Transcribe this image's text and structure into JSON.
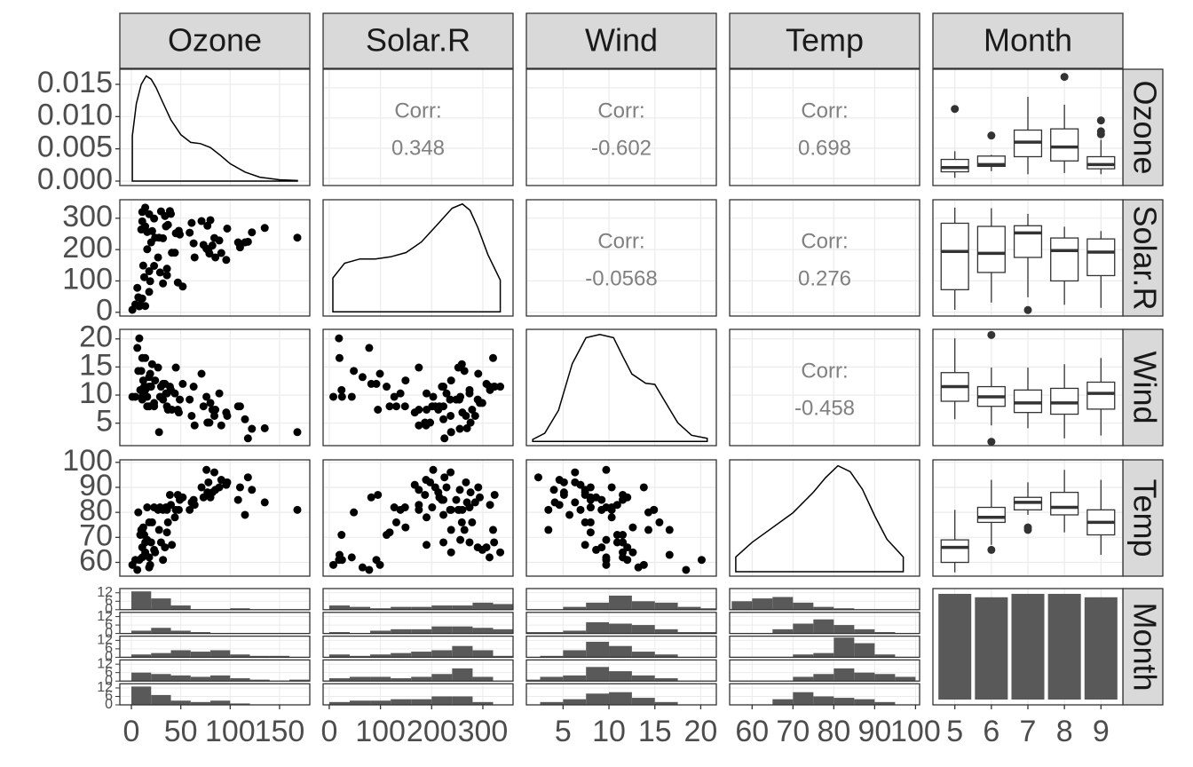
{
  "chart_data": {
    "type": "pairs",
    "variables": [
      "Ozone",
      "Solar.R",
      "Wind",
      "Temp",
      "Month"
    ],
    "axes": [
      {
        "lim": [
          -11.7,
          180.6
        ],
        "ticks": [
          0,
          50,
          100,
          150
        ]
      },
      {
        "lim": [
          -12,
          359
        ],
        "ticks": [
          0,
          100,
          200,
          300
        ]
      },
      {
        "lim": [
          1,
          21.7
        ],
        "ticks": [
          5,
          10,
          15,
          20
        ]
      },
      {
        "lim": [
          54.5,
          101
        ],
        "ticks": [
          60,
          70,
          80,
          90,
          100
        ]
      }
    ],
    "month_categories": [
      5,
      6,
      7,
      8,
      9
    ],
    "density_yticks": [
      {
        "value": 0,
        "label": "0.000"
      },
      {
        "value": 0.005,
        "label": "0.005"
      },
      {
        "value": 0.01,
        "label": "0.010"
      },
      {
        "value": 0.015,
        "label": "0.015"
      }
    ],
    "densities": [
      {
        "ylim": [
          -0.00069,
          0.01734
        ],
        "x": [
          1,
          5,
          10,
          15,
          20,
          25,
          30,
          40,
          50,
          60,
          70,
          80,
          90,
          100,
          115,
          130,
          150,
          168
        ],
        "y": [
          0.007,
          0.012,
          0.015,
          0.0163,
          0.0158,
          0.0145,
          0.0128,
          0.0095,
          0.0072,
          0.006,
          0.0058,
          0.0052,
          0.004,
          0.0027,
          0.0014,
          0.0006,
          0.0002,
          0.0001
        ]
      },
      {
        "ylim": [
          -0.0002,
          0.0053
        ],
        "x": [
          7,
          30,
          60,
          90,
          120,
          150,
          180,
          210,
          240,
          260,
          275,
          290,
          310,
          334
        ],
        "y": [
          0.0016,
          0.0023,
          0.0025,
          0.0025,
          0.0026,
          0.0028,
          0.0033,
          0.0041,
          0.0049,
          0.0051,
          0.0048,
          0.004,
          0.0027,
          0.0015
        ]
      },
      {
        "ylim": [
          -0.004,
          0.108
        ],
        "x": [
          1.7,
          3,
          4.5,
          6,
          7.5,
          9,
          10.5,
          11.5,
          12.5,
          14,
          15,
          16,
          17.5,
          19,
          20.7
        ],
        "y": [
          0.002,
          0.008,
          0.03,
          0.075,
          0.1,
          0.103,
          0.1,
          0.082,
          0.065,
          0.056,
          0.055,
          0.04,
          0.018,
          0.006,
          0.003
        ]
      },
      {
        "ylim": [
          -0.0015,
          0.038
        ],
        "x": [
          56,
          60,
          65,
          70,
          75,
          78,
          81,
          84,
          87,
          90,
          93,
          97
        ],
        "y": [
          0.005,
          0.01,
          0.015,
          0.02,
          0.027,
          0.032,
          0.036,
          0.034,
          0.028,
          0.019,
          0.011,
          0.005
        ]
      }
    ],
    "correlations": [
      {
        "label": "Corr:",
        "value": 0.348
      },
      {
        "label": "Corr:",
        "value": -0.602
      },
      {
        "label": "Corr:",
        "value": 0.698
      },
      {
        "label": "Corr:",
        "value": -0.0568
      },
      {
        "label": "Corr:",
        "value": 0.276
      },
      {
        "label": "Corr:",
        "value": -0.458
      }
    ],
    "observations": [
      [
        41,
        36,
        12,
        18,
        23,
        19,
        8,
        16,
        11,
        14,
        18,
        14,
        34,
        6,
        30,
        11,
        1,
        11,
        4,
        32,
        45,
        115,
        37,
        29,
        71,
        39,
        23,
        135,
        49,
        32,
        64,
        40,
        77,
        97,
        85,
        10,
        27,
        7,
        48,
        35,
        61,
        79,
        63,
        80,
        108,
        52,
        82,
        59,
        122,
        89,
        110,
        168,
        73,
        76,
        118,
        84,
        96,
        78,
        91,
        47,
        21,
        24,
        44,
        28,
        9,
        13,
        16,
        36,
        14,
        18,
        20
      ],
      [
        190,
        118,
        149,
        313,
        299,
        99,
        19,
        256,
        290,
        274,
        65,
        334,
        307,
        78,
        322,
        44,
        8,
        320,
        25,
        92,
        252,
        223,
        279,
        127,
        291,
        323,
        148,
        269,
        248,
        236,
        175,
        314,
        276,
        267,
        175,
        264,
        175,
        48,
        260,
        274,
        285,
        187,
        220,
        294,
        223,
        82,
        213,
        254,
        255,
        229,
        207,
        238,
        215,
        203,
        225,
        237,
        167,
        197,
        189,
        95,
        259,
        238,
        190,
        238,
        24,
        112,
        201,
        139,
        20,
        131,
        223
      ],
      [
        7.4,
        8.0,
        12.6,
        11.5,
        8.6,
        13.8,
        20.1,
        9.7,
        9.2,
        10.9,
        13.2,
        11.5,
        12.0,
        18.4,
        11.5,
        9.7,
        9.7,
        16.6,
        9.7,
        12.0,
        14.9,
        5.7,
        7.4,
        9.7,
        13.8,
        11.5,
        8.0,
        4.1,
        9.2,
        9.2,
        4.6,
        10.9,
        5.1,
        6.3,
        7.4,
        14.3,
        14.9,
        14.3,
        6.9,
        10.3,
        6.3,
        5.1,
        11.5,
        8.6,
        8.0,
        12.0,
        7.4,
        9.2,
        4.0,
        10.3,
        8.0,
        3.4,
        8.0,
        9.7,
        2.3,
        6.3,
        6.9,
        5.1,
        4.6,
        7.4,
        15.5,
        12.6,
        10.3,
        3.4,
        10.9,
        11.5,
        8.0,
        10.3,
        16.6,
        8.0,
        11.5
      ],
      [
        67,
        72,
        74,
        62,
        65,
        59,
        61,
        69,
        66,
        68,
        58,
        64,
        66,
        57,
        68,
        62,
        59,
        73,
        61,
        61,
        81,
        79,
        76,
        82,
        90,
        87,
        82,
        84,
        85,
        81,
        83,
        83,
        88,
        92,
        89,
        73,
        81,
        80,
        81,
        82,
        84,
        87,
        85,
        86,
        85,
        86,
        88,
        81,
        89,
        90,
        90,
        81,
        86,
        97,
        94,
        96,
        91,
        92,
        93,
        87,
        76,
        64,
        78,
        73,
        71,
        71,
        82,
        81,
        63,
        76,
        68
      ]
    ],
    "boxplots": [
      [
        {
          "min": 1,
          "q1": 11,
          "median": 18,
          "q3": 31.5,
          "max": 45,
          "outliers": [
            115
          ]
        },
        {
          "min": 12,
          "q1": 20,
          "median": 23,
          "q3": 37,
          "max": 39,
          "outliers": [
            71
          ]
        },
        {
          "min": 7,
          "q1": 36,
          "median": 60,
          "q3": 80,
          "max": 135,
          "outliers": []
        },
        {
          "min": 9,
          "q1": 29,
          "median": 52,
          "q3": 82,
          "max": 122,
          "outliers": [
            168
          ]
        },
        {
          "min": 7,
          "q1": 16,
          "median": 23,
          "q3": 36,
          "max": 64,
          "outliers": [
            96,
            78,
            73
          ]
        }
      ],
      [
        {
          "min": 8,
          "q1": 72,
          "median": 194,
          "q3": 284,
          "max": 334,
          "outliers": []
        },
        {
          "min": 31,
          "q1": 127,
          "median": 188,
          "q3": 274,
          "max": 332,
          "outliers": []
        },
        {
          "min": 48,
          "q1": 175,
          "median": 253,
          "q3": 276,
          "max": 314,
          "outliers": [
            7
          ]
        },
        {
          "min": 24,
          "q1": 100,
          "median": 197,
          "q3": 237,
          "max": 273,
          "outliers": []
        },
        {
          "min": 14,
          "q1": 117,
          "median": 192,
          "q3": 234,
          "max": 259,
          "outliers": []
        }
      ],
      [
        {
          "min": 5.7,
          "q1": 8.9,
          "median": 11.5,
          "q3": 14,
          "max": 20.1,
          "outliers": []
        },
        {
          "min": 4.6,
          "q1": 8,
          "median": 9.7,
          "q3": 11.5,
          "max": 14.9,
          "outliers": [
            20.7,
            1.7
          ]
        },
        {
          "min": 4.1,
          "q1": 6.9,
          "median": 8.6,
          "q3": 10.9,
          "max": 14.9,
          "outliers": []
        },
        {
          "min": 2.3,
          "q1": 6.6,
          "median": 8.6,
          "q3": 11.2,
          "max": 15.5,
          "outliers": []
        },
        {
          "min": 2.8,
          "q1": 7.5,
          "median": 10.3,
          "q3": 12.3,
          "max": 16.6,
          "outliers": []
        }
      ],
      [
        {
          "min": 56,
          "q1": 60,
          "median": 66,
          "q3": 69,
          "max": 81,
          "outliers": []
        },
        {
          "min": 67,
          "q1": 76,
          "median": 78,
          "q3": 82,
          "max": 93,
          "outliers": [
            65
          ]
        },
        {
          "min": 79,
          "q1": 81,
          "median": 84,
          "q3": 86,
          "max": 92,
          "outliers": [
            73,
            74
          ]
        },
        {
          "min": 72,
          "q1": 79,
          "median": 82,
          "q3": 88,
          "max": 97,
          "outliers": []
        },
        {
          "min": 63,
          "q1": 71,
          "median": 76,
          "q3": 81,
          "max": 93,
          "outliers": []
        }
      ]
    ],
    "month_counts": {
      "values": [
        31,
        30,
        31,
        31,
        30
      ],
      "ylim": [
        -1.55,
        32.55
      ]
    },
    "hist_ylim": [
      0,
      15
    ],
    "hist_yticks": [
      0,
      6,
      12
    ],
    "histograms": [
      {
        "bins": [
          0,
          20,
          40,
          60,
          80,
          100,
          120,
          140,
          160,
          180
        ],
        "counts": [
          [
            13,
            8,
            3,
            0,
            0,
            1,
            0,
            0,
            0
          ],
          [
            2,
            4,
            2,
            1,
            0,
            0,
            0,
            0,
            0
          ],
          [
            2,
            3,
            5,
            4,
            5,
            2,
            1,
            1,
            0
          ],
          [
            6,
            5,
            4,
            3,
            4,
            2,
            1,
            0,
            1
          ],
          [
            13,
            7,
            3,
            2,
            3,
            1,
            0,
            0,
            0
          ]
        ]
      },
      {
        "bins": [
          0,
          40,
          80,
          120,
          160,
          200,
          240,
          280,
          320,
          360
        ],
        "counts": [
          [
            3,
            2,
            1,
            2,
            2,
            3,
            3,
            5,
            4
          ],
          [
            1,
            0,
            2,
            3,
            3,
            5,
            5,
            4,
            3
          ],
          [
            2,
            1,
            2,
            3,
            4,
            5,
            8,
            5,
            1
          ],
          [
            2,
            3,
            3,
            2,
            3,
            5,
            9,
            3,
            0
          ],
          [
            2,
            3,
            3,
            4,
            4,
            6,
            6,
            2,
            0
          ]
        ]
      },
      {
        "bins": [
          0,
          2.5,
          5,
          7.5,
          10,
          12.5,
          15,
          17.5,
          20,
          22.5
        ],
        "counts": [
          [
            0,
            0,
            2,
            5,
            10,
            6,
            5,
            2,
            1
          ],
          [
            1,
            1,
            2,
            8,
            7,
            6,
            3,
            1,
            1
          ],
          [
            0,
            1,
            5,
            11,
            8,
            4,
            2,
            0,
            0
          ],
          [
            1,
            3,
            4,
            10,
            7,
            4,
            2,
            0,
            0
          ],
          [
            0,
            2,
            4,
            8,
            9,
            5,
            2,
            0,
            0
          ]
        ]
      },
      {
        "bins": [
          55,
          60,
          65,
          70,
          75,
          80,
          85,
          90,
          95,
          100
        ],
        "counts": [
          [
            6,
            8,
            9,
            5,
            2,
            1,
            0,
            0,
            0
          ],
          [
            0,
            0,
            3,
            7,
            10,
            6,
            3,
            1,
            0
          ],
          [
            0,
            0,
            0,
            2,
            3,
            14,
            10,
            2,
            0
          ],
          [
            0,
            0,
            0,
            3,
            5,
            9,
            6,
            5,
            3
          ],
          [
            0,
            0,
            4,
            9,
            6,
            5,
            4,
            2,
            0
          ]
        ]
      }
    ],
    "colors": {
      "point": "#000000",
      "box_line": "#333333",
      "bar": "#595959",
      "strip": "#d9d9d9",
      "grid": "#ebebeb",
      "corr_text": "#808080"
    }
  }
}
